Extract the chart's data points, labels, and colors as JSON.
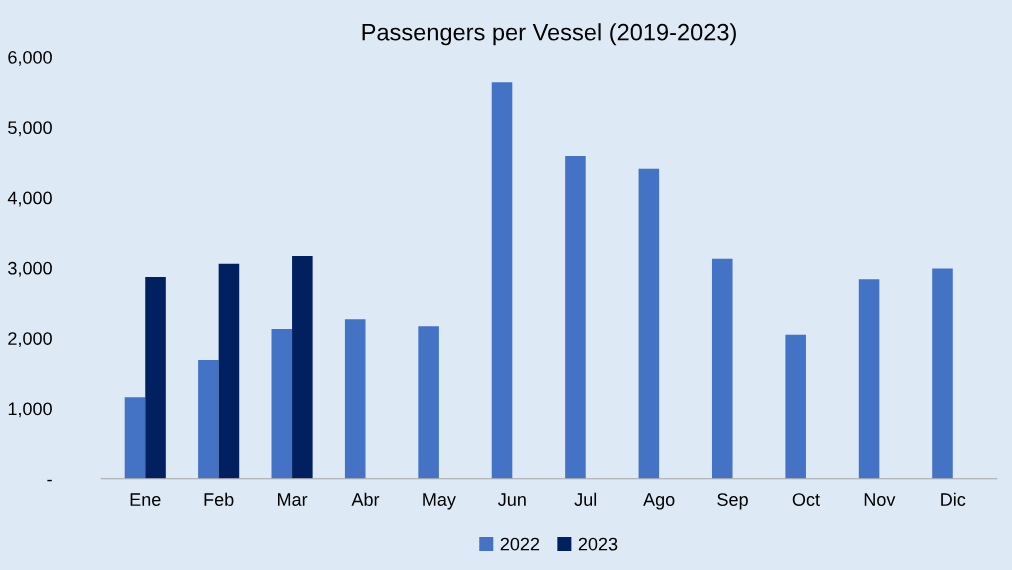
{
  "chart_data": {
    "type": "bar",
    "title": "Passengers per Vessel (2019-2023)",
    "categories": [
      "Ene",
      "Feb",
      "Mar",
      "Abr",
      "May",
      "Jun",
      "Jul",
      "Ago",
      "Sep",
      "Oct",
      "Nov",
      "Dic"
    ],
    "series": [
      {
        "name": "2022",
        "color": "#4472c4",
        "values": [
          1160,
          1690,
          2130,
          2270,
          2170,
          5640,
          4590,
          4410,
          3130,
          2050,
          2840,
          2990
        ]
      },
      {
        "name": "2023",
        "color": "#002060",
        "values": [
          2870,
          3060,
          3170,
          null,
          null,
          null,
          null,
          null,
          null,
          null,
          null,
          null
        ]
      }
    ],
    "ylim": [
      0,
      6000
    ],
    "yticks": [
      {
        "value": 0,
        "label": "-"
      },
      {
        "value": 1000,
        "label": "1,000"
      },
      {
        "value": 2000,
        "label": "2,000"
      },
      {
        "value": 3000,
        "label": "3,000"
      },
      {
        "value": 4000,
        "label": "4,000"
      },
      {
        "value": 5000,
        "label": "5,000"
      },
      {
        "value": 6000,
        "label": "6,000"
      }
    ],
    "grid": false,
    "legend": "bottom"
  }
}
